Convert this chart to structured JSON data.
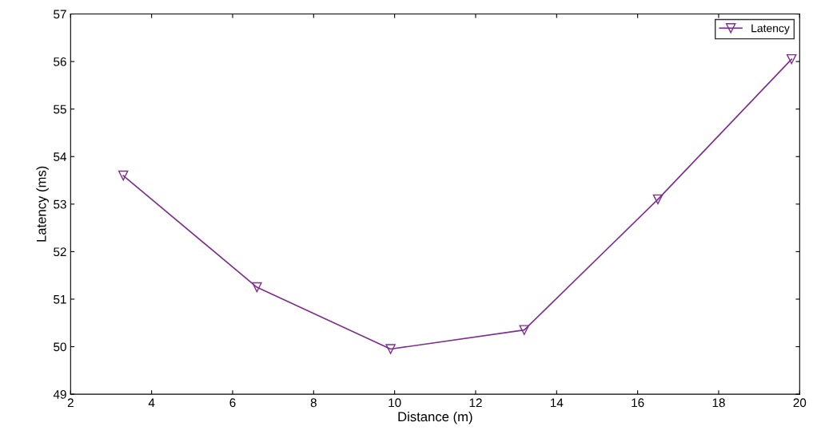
{
  "chart_data": {
    "type": "line",
    "xlabel": "Distance (m)",
    "ylabel": "Latency (ms)",
    "x": [
      3.3,
      6.6,
      9.9,
      13.2,
      16.5,
      19.8
    ],
    "series": [
      {
        "name": "Latency",
        "color": "#7e2f8e",
        "values": [
          53.6,
          51.25,
          49.95,
          50.35,
          53.1,
          56.05
        ]
      }
    ],
    "xlim": [
      2,
      20
    ],
    "xticks": [
      2,
      4,
      6,
      8,
      10,
      12,
      14,
      16,
      18,
      20
    ],
    "ylim": [
      49,
      57
    ],
    "yticks": [
      49,
      50,
      51,
      52,
      53,
      54,
      55,
      56,
      57
    ],
    "marker": "triangle_down",
    "line_style": "solid",
    "legend": "top right",
    "grid": false
  }
}
